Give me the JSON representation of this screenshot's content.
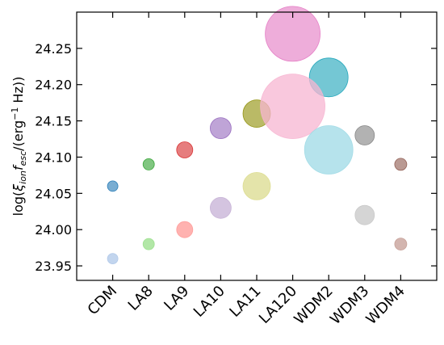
{
  "chart_data": {
    "type": "scatter",
    "categories": [
      "CDM",
      "LA8",
      "LA9",
      "LA10",
      "LA11",
      "LA120",
      "WDM2",
      "WDM3",
      "WDM4"
    ],
    "ylabel_parts": {
      "prefix": "log(",
      "xi": "ξ",
      "ion": "ion",
      "f": "f",
      "esc": "esc",
      "middle": "/(erg",
      "exp": "−1",
      "suffix": " Hz))"
    },
    "ylim": [
      23.93,
      24.3
    ],
    "yticks": [
      "23.95",
      "24.00",
      "24.05",
      "24.10",
      "24.15",
      "24.20",
      "24.25"
    ],
    "grid": false,
    "series": [
      {
        "values": [
          24.06,
          24.09,
          24.11,
          24.14,
          24.16,
          24.27,
          24.21,
          24.13,
          24.09
        ],
        "colors": [
          "#1f77b4",
          "#2ca02c",
          "#d62728",
          "#9467bd",
          "#8c8c00",
          "#e377c2",
          "#17a2b8",
          "#7f7f7f",
          "#8c564b"
        ],
        "opacity": 0.6,
        "sizes": [
          6.5,
          7,
          10,
          13,
          17,
          34,
          24,
          12,
          7.5
        ]
      },
      {
        "values": [
          23.96,
          23.98,
          24.0,
          24.03,
          24.06,
          24.17,
          24.11,
          24.02,
          23.98
        ],
        "colors": [
          "#aec7e8",
          "#98df8a",
          "#ff9896",
          "#c5b0d5",
          "#dbdb8d",
          "#f7b6d2",
          "#9edae5",
          "#c7c7c7",
          "#c49c94"
        ],
        "opacity": 0.75,
        "sizes": [
          6.5,
          7,
          10,
          13,
          17,
          40,
          30,
          12,
          7.5
        ]
      }
    ]
  }
}
